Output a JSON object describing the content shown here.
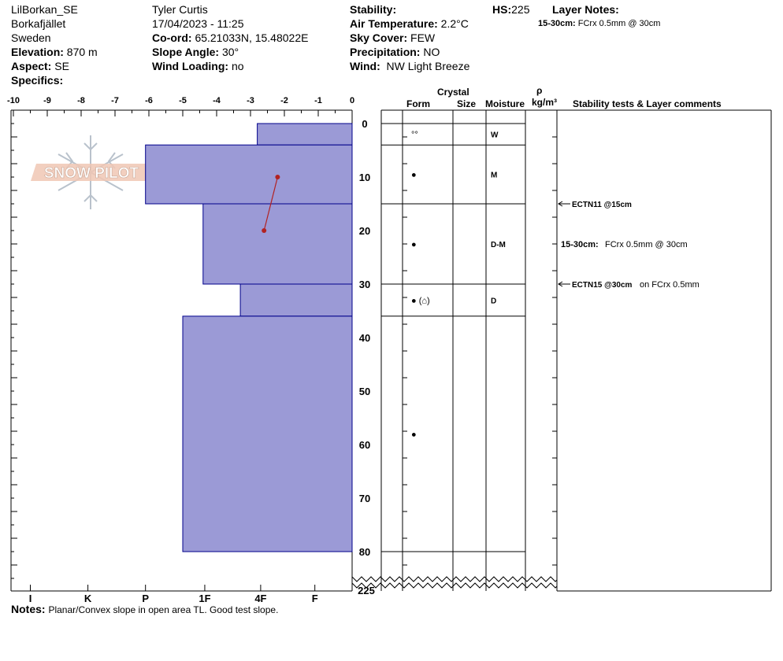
{
  "site": {
    "location": "LilBorkan_SE",
    "region": "Borkafjället",
    "country": "Sweden",
    "elevation_label": "Elevation:",
    "elevation": "870 m",
    "aspect_label": "Aspect:",
    "aspect": "SE",
    "specifics_label": "Specifics:"
  },
  "observer": {
    "name": "Tyler Curtis",
    "datetime": "17/04/2023 - 11:25",
    "coord_label": "Co-ord:",
    "coord": "65.21033N, 15.48022E",
    "slope_label": "Slope Angle:",
    "slope": "30°",
    "wind_loading_label": "Wind Loading:",
    "wind_loading": "no"
  },
  "conditions": {
    "stability_label": "Stability:",
    "air_temp_label": "Air Temperature:",
    "air_temp": "2.2°C",
    "sky_label": "Sky Cover:",
    "sky": "FEW",
    "precip_label": "Precipitation:",
    "precip": "NO",
    "wind_label": "Wind:",
    "wind": "NW Light Breeze"
  },
  "hs": {
    "label": "HS:",
    "value": "225"
  },
  "layer_notes": {
    "title": "Layer Notes:",
    "range": "15-30cm:",
    "text": "FCrx 0.5mm @ 30cm"
  },
  "table_headers": {
    "crystal": "Crystal",
    "form": "Form",
    "size": "Size",
    "moisture": "Moisture",
    "rho": "ρ",
    "density_unit": "kg/m³",
    "comments": "Stability tests & Layer comments"
  },
  "watermark": "SNOW PILOT",
  "notes_label": "Notes:",
  "notes": "Planar/Convex slope in open area TL. Good test slope.",
  "chart_data": {
    "type": "bar",
    "x_ticks": [
      "-10",
      "-9",
      "-8",
      "-7",
      "-6",
      "-5",
      "-4",
      "-3",
      "-2",
      "-1",
      "0"
    ],
    "x_range": [
      -10,
      0
    ],
    "hardness_ticks": [
      "I",
      "K",
      "P",
      "1F",
      "4F",
      "F"
    ],
    "hardness_positions": [
      -9.5,
      -7.8,
      -6.1,
      -4.35,
      -2.7,
      -1.1
    ],
    "y_ticks": [
      "0",
      "10",
      "20",
      "30",
      "40",
      "50",
      "60",
      "70",
      "80"
    ],
    "depth_range": [
      0,
      88
    ],
    "bottom_label": "225",
    "layers": [
      {
        "top": 0,
        "bottom": 4,
        "hardness": -2.8
      },
      {
        "top": 4,
        "bottom": 15,
        "hardness": -6.1
      },
      {
        "top": 15,
        "bottom": 30,
        "hardness": -4.4
      },
      {
        "top": 30,
        "bottom": 36,
        "hardness": -3.3
      },
      {
        "top": 36,
        "bottom": 80,
        "hardness": -5.0
      }
    ],
    "temperature_profile": [
      {
        "depth": 10,
        "temp": -2.2
      },
      {
        "depth": 20,
        "temp": -2.6
      }
    ]
  },
  "layer_table": {
    "rows": [
      {
        "top": 0,
        "bottom": 4,
        "form": "°°",
        "moisture": "W"
      },
      {
        "top": 4,
        "bottom": 15,
        "form": "●",
        "moisture": "M"
      },
      {
        "top": 15,
        "bottom": 30,
        "form": "●",
        "moisture": "D-M"
      },
      {
        "top": 30,
        "bottom": 36,
        "form": "● (⌂)",
        "moisture": "D"
      },
      {
        "top": 36,
        "bottom": 80,
        "form": "●",
        "moisture": ""
      }
    ]
  },
  "tests": [
    {
      "depth": 15,
      "label": "ECTN11 @15cm",
      "extra": ""
    },
    {
      "depth": 30,
      "label": "ECTN15 @30cm",
      "extra": "on FCrx 0.5mm"
    }
  ],
  "layer_comment": {
    "depth": 22.5,
    "range": "15-30cm:",
    "text": "FCrx 0.5mm @ 30cm"
  },
  "colors": {
    "layer_fill": "#9b9ad6",
    "layer_stroke": "#00008b",
    "temp_line": "#b22222"
  }
}
